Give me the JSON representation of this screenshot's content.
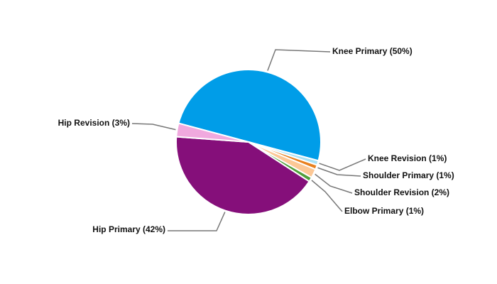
{
  "chart_data": {
    "type": "pie",
    "categories": [
      "Knee Primary (50%)",
      "Knee Revision (1%)",
      "Shoulder Primary (1%)",
      "Shoulder Revision (2%)",
      "Elbow Primary (1%)",
      "Hip Primary (42%)",
      "Hip Revision (3%)"
    ],
    "values": [
      50,
      1,
      1,
      2,
      1,
      42,
      3
    ],
    "colors": [
      "#009de8",
      "#a9e1f5",
      "#e8801e",
      "#fcc896",
      "#4f9f3b",
      "#850f7a",
      "#f0a9de"
    ]
  }
}
